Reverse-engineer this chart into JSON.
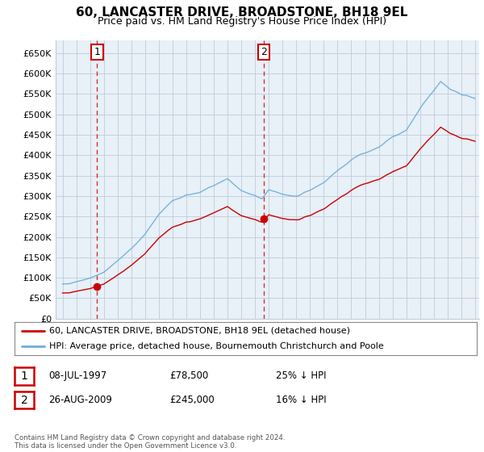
{
  "title": "60, LANCASTER DRIVE, BROADSTONE, BH18 9EL",
  "subtitle": "Price paid vs. HM Land Registry's House Price Index (HPI)",
  "legend_line1": "60, LANCASTER DRIVE, BROADSTONE, BH18 9EL (detached house)",
  "legend_line2": "HPI: Average price, detached house, Bournemouth Christchurch and Poole",
  "sale1_label": "1",
  "sale1_date": "08-JUL-1997",
  "sale1_price": "£78,500",
  "sale1_hpi": "25% ↓ HPI",
  "sale1_year": 1997.52,
  "sale1_value": 78500,
  "sale2_label": "2",
  "sale2_date": "26-AUG-2009",
  "sale2_price": "£245,000",
  "sale2_hpi": "16% ↓ HPI",
  "sale2_year": 2009.65,
  "sale2_value": 245000,
  "footnote": "Contains HM Land Registry data © Crown copyright and database right 2024.\nThis data is licensed under the Open Government Licence v3.0.",
  "hpi_color": "#6baed6",
  "hpi_fill_color": "#dce9f5",
  "price_color": "#cc0000",
  "marker_color": "#cc0000",
  "background_color": "#ffffff",
  "plot_bg_color": "#e8f0f8",
  "grid_color": "#c0ccd8",
  "ylim_min": 0,
  "ylim_max": 680000,
  "ytick_step": 50000,
  "xstart": 1995,
  "xend": 2025
}
